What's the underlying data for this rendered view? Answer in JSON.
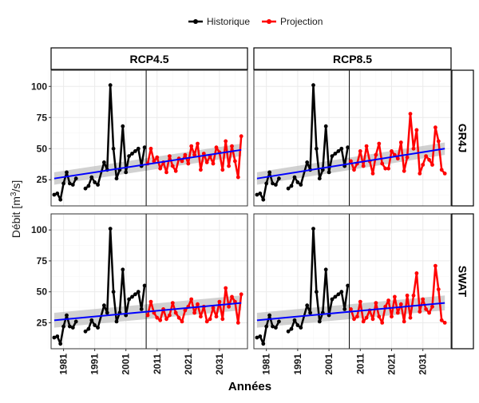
{
  "chart_data": {
    "type": "line",
    "xlabel": "Années",
    "ylabel": "Débit [m³/s]",
    "ylabel_parts": {
      "main": "Débit [m",
      "sup": "3",
      "tail": "/s]"
    },
    "xlim": [
      1977,
      2040
    ],
    "ylim": [
      4,
      113
    ],
    "xticks": [
      1981,
      1991,
      2001,
      2011,
      2021,
      2031
    ],
    "yticks": [
      25,
      50,
      75,
      100
    ],
    "vline_x": 2007.5,
    "grid": true,
    "legend": {
      "position": "top",
      "entries": [
        "Historique",
        "Projection"
      ]
    },
    "colors": {
      "historique": "#000000",
      "projection": "#ff0000",
      "trend": "#0000ff",
      "ribbon": "#bdbdbd",
      "strip": "#ffffff",
      "grid": "#ebebeb"
    },
    "column_strips": [
      "RCP4.5",
      "RCP8.5"
    ],
    "row_strips": [
      "GR4J",
      "SWAT"
    ],
    "panels": [
      {
        "column": "RCP4.5",
        "row": "GR4J",
        "historique": {
          "x": [
            1978,
            1979,
            1980,
            1981,
            1982,
            1983,
            1984,
            1985,
            1986,
            1988,
            1989,
            1990,
            1991,
            1992,
            1994,
            1995,
            1996,
            1997,
            1998,
            1999,
            2000,
            2001,
            2002,
            2003,
            2004,
            2005,
            2006,
            2007
          ],
          "y": [
            13,
            14,
            9,
            22,
            31,
            22,
            21,
            26,
            null,
            18,
            20,
            27,
            23,
            21,
            39,
            33,
            101,
            50,
            26,
            33,
            68,
            31,
            44,
            46,
            48,
            50,
            36,
            51
          ]
        },
        "projection": {
          "x": [
            2008,
            2009,
            2010,
            2011,
            2012,
            2013,
            2014,
            2015,
            2016,
            2017,
            2018,
            2019,
            2020,
            2021,
            2022,
            2023,
            2024,
            2025,
            2026,
            2027,
            2028,
            2029,
            2030,
            2031,
            2032,
            2033,
            2034,
            2035,
            2036,
            2037,
            2038
          ],
          "y": [
            38,
            50,
            40,
            43,
            34,
            39,
            31,
            44,
            36,
            32,
            42,
            40,
            45,
            38,
            52,
            45,
            54,
            33,
            46,
            39,
            44,
            38,
            51,
            47,
            33,
            56,
            36,
            52,
            40,
            27,
            60
          ]
        },
        "trend": {
          "x0": 1978,
          "y0": 26,
          "x1": 2038,
          "y1": 49,
          "band_halfwidth": 5
        }
      },
      {
        "column": "RCP8.5",
        "row": "GR4J",
        "historique": {
          "x": [
            1978,
            1979,
            1980,
            1981,
            1982,
            1983,
            1984,
            1985,
            1986,
            1988,
            1989,
            1990,
            1991,
            1992,
            1994,
            1995,
            1996,
            1997,
            1998,
            1999,
            2000,
            2001,
            2002,
            2003,
            2004,
            2005,
            2006,
            2007
          ],
          "y": [
            13,
            14,
            9,
            22,
            31,
            22,
            21,
            26,
            null,
            18,
            20,
            27,
            23,
            21,
            39,
            33,
            101,
            50,
            26,
            33,
            68,
            31,
            44,
            46,
            48,
            50,
            36,
            51
          ]
        },
        "projection": {
          "x": [
            2008,
            2009,
            2010,
            2011,
            2012,
            2013,
            2014,
            2015,
            2016,
            2017,
            2018,
            2019,
            2020,
            2021,
            2022,
            2023,
            2024,
            2025,
            2026,
            2027,
            2028,
            2029,
            2030,
            2031,
            2032,
            2033,
            2034,
            2035,
            2036,
            2037,
            2038
          ],
          "y": [
            40,
            33,
            38,
            48,
            36,
            52,
            40,
            30,
            45,
            54,
            38,
            34,
            34,
            48,
            45,
            42,
            55,
            32,
            43,
            78,
            50,
            65,
            30,
            37,
            44,
            41,
            37,
            67,
            56,
            33,
            30
          ]
        },
        "trend": {
          "x0": 1978,
          "y0": 26,
          "x1": 2038,
          "y1": 50,
          "band_halfwidth": 5
        }
      },
      {
        "column": "RCP4.5",
        "row": "SWAT",
        "historique": {
          "x": [
            1978,
            1979,
            1980,
            1981,
            1982,
            1983,
            1984,
            1985,
            1986,
            1988,
            1989,
            1990,
            1991,
            1992,
            1994,
            1995,
            1996,
            1997,
            1998,
            1999,
            2000,
            2001,
            2002,
            2003,
            2004,
            2005,
            2006,
            2007
          ],
          "y": [
            13,
            14,
            8,
            22,
            31,
            22,
            21,
            26,
            null,
            18,
            20,
            27,
            23,
            21,
            39,
            33,
            101,
            50,
            26,
            33,
            68,
            31,
            44,
            46,
            48,
            50,
            36,
            55
          ]
        },
        "projection": {
          "x": [
            2008,
            2009,
            2010,
            2011,
            2012,
            2013,
            2014,
            2015,
            2016,
            2017,
            2018,
            2019,
            2020,
            2021,
            2022,
            2023,
            2024,
            2025,
            2026,
            2027,
            2028,
            2029,
            2030,
            2031,
            2032,
            2033,
            2034,
            2035,
            2036,
            2037,
            2038
          ],
          "y": [
            31,
            42,
            33,
            29,
            27,
            36,
            28,
            31,
            41,
            33,
            29,
            26,
            35,
            38,
            44,
            33,
            40,
            30,
            38,
            26,
            28,
            37,
            30,
            42,
            28,
            53,
            38,
            46,
            42,
            25,
            48
          ]
        },
        "trend": {
          "x0": 1978,
          "y0": 27,
          "x1": 2038,
          "y1": 41,
          "band_halfwidth": 6
        }
      },
      {
        "column": "RCP8.5",
        "row": "SWAT",
        "historique": {
          "x": [
            1978,
            1979,
            1980,
            1981,
            1982,
            1983,
            1984,
            1985,
            1986,
            1988,
            1989,
            1990,
            1991,
            1992,
            1994,
            1995,
            1996,
            1997,
            1998,
            1999,
            2000,
            2001,
            2002,
            2003,
            2004,
            2005,
            2006,
            2007
          ],
          "y": [
            13,
            14,
            8,
            22,
            31,
            22,
            21,
            26,
            null,
            18,
            20,
            27,
            23,
            21,
            39,
            33,
            101,
            50,
            26,
            33,
            68,
            31,
            44,
            46,
            48,
            50,
            36,
            55
          ]
        },
        "projection": {
          "x": [
            2008,
            2009,
            2010,
            2011,
            2012,
            2013,
            2014,
            2015,
            2016,
            2017,
            2018,
            2019,
            2020,
            2021,
            2022,
            2023,
            2024,
            2025,
            2026,
            2027,
            2028,
            2029,
            2030,
            2031,
            2032,
            2033,
            2034,
            2035,
            2036,
            2037,
            2038
          ],
          "y": [
            36,
            28,
            30,
            42,
            26,
            29,
            35,
            28,
            41,
            30,
            25,
            38,
            43,
            30,
            46,
            33,
            40,
            26,
            47,
            29,
            47,
            65,
            34,
            44,
            36,
            33,
            38,
            71,
            52,
            27,
            25
          ]
        },
        "trend": {
          "x0": 1978,
          "y0": 27,
          "x1": 2038,
          "y1": 41,
          "band_halfwidth": 6
        }
      }
    ]
  }
}
